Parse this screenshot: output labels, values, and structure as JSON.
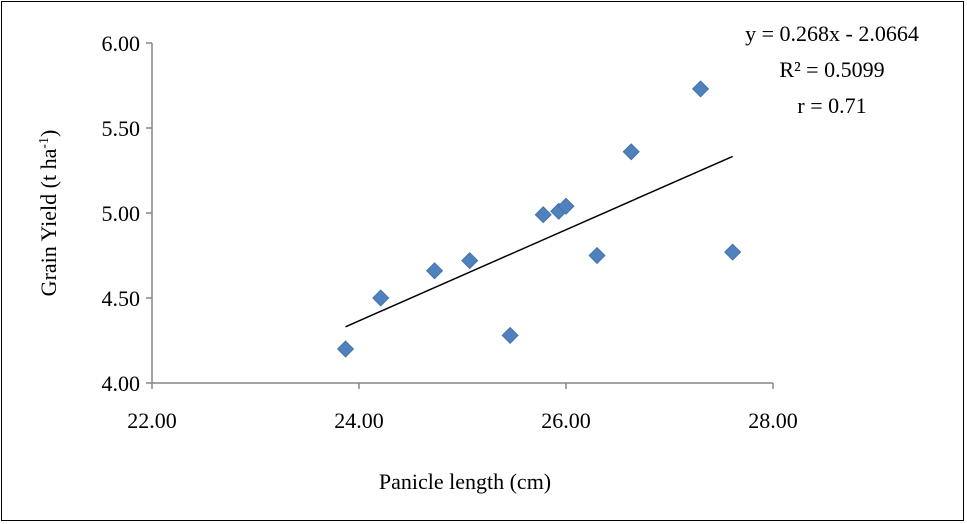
{
  "chart_data": {
    "type": "scatter",
    "xlabel": "Panicle length (cm)",
    "ylabel_main": "Grain Yield (t ha",
    "ylabel_sup": "-1",
    "ylabel_close": ")",
    "xlim": [
      22,
      28
    ],
    "ylim": [
      4,
      6
    ],
    "x_ticks": [
      "22.00",
      "24.00",
      "26.00",
      "28.00"
    ],
    "y_ticks": [
      "4.00",
      "4.50",
      "5.00",
      "5.50",
      "6.00"
    ],
    "grid": false,
    "legend": "none",
    "marker_color": "#4f81bd",
    "points": [
      {
        "x": 23.87,
        "y": 4.2
      },
      {
        "x": 24.21,
        "y": 4.5
      },
      {
        "x": 24.73,
        "y": 4.66
      },
      {
        "x": 25.07,
        "y": 4.72
      },
      {
        "x": 25.46,
        "y": 4.28
      },
      {
        "x": 25.78,
        "y": 4.99
      },
      {
        "x": 25.93,
        "y": 5.01
      },
      {
        "x": 26.0,
        "y": 5.04
      },
      {
        "x": 26.3,
        "y": 4.75
      },
      {
        "x": 26.63,
        "y": 5.36
      },
      {
        "x": 27.3,
        "y": 5.73
      },
      {
        "x": 27.61,
        "y": 4.77
      }
    ],
    "trendline": {
      "slope": 0.268,
      "intercept": -2.0664,
      "x_range": [
        23.87,
        27.61
      ]
    },
    "annotations": {
      "equation": "y = 0.268x - 2.0664",
      "r_squared": "R² = 0.5099",
      "r": "r = 0.71"
    }
  }
}
